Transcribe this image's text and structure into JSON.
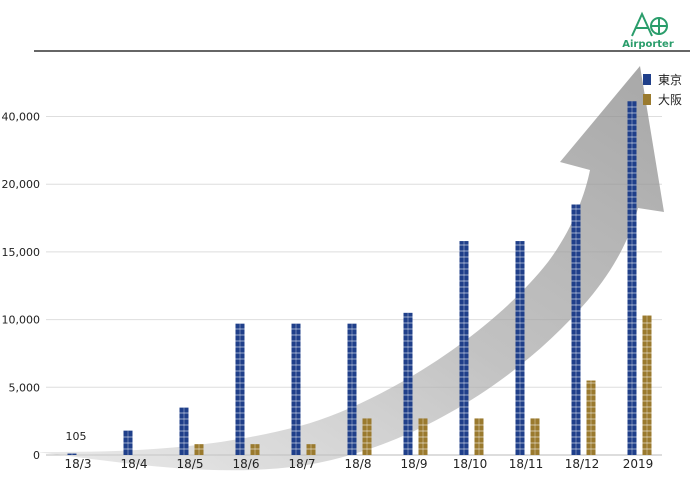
{
  "logo": {
    "text": "Airporter",
    "brand_color": "#2a9d6b"
  },
  "chart_data": {
    "type": "bar",
    "title": "",
    "xlabel": "",
    "ylabel": "",
    "y_ticks": [
      {
        "value": 0,
        "label": "0"
      },
      {
        "value": 5000,
        "label": "5,000"
      },
      {
        "value": 10000,
        "label": "10,000"
      },
      {
        "value": 15000,
        "label": "15,000"
      },
      {
        "value": 20000,
        "label": "20,000"
      },
      {
        "value": 40000,
        "label": "40,000"
      }
    ],
    "y_scale_note": "broken axis: ticks are evenly spaced while 20,000 → 40,000 jumps",
    "grid": true,
    "legend_position": "top-right",
    "categories": [
      "18/3",
      "18/4",
      "18/5",
      "18/6",
      "18/7",
      "18/8",
      "18/9",
      "18/10",
      "18/11",
      "18/12",
      "2019"
    ],
    "series": [
      {
        "name": "東京",
        "color": "#1f3f8a",
        "values": [
          105,
          1800,
          3500,
          9700,
          9700,
          9700,
          10500,
          15800,
          15800,
          18500,
          44500
        ]
      },
      {
        "name": "大阪",
        "color": "#9a7a2e",
        "values": [
          0,
          0,
          800,
          800,
          800,
          2700,
          2700,
          2700,
          2700,
          5500,
          10300
        ]
      }
    ],
    "annotations": [
      {
        "category": "18/3",
        "text": "105"
      }
    ]
  }
}
